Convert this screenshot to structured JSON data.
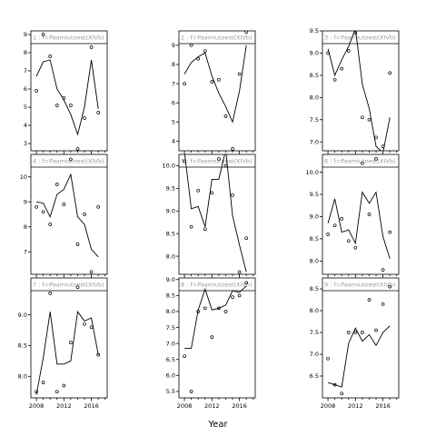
{
  "chart_data": {
    "type": "scatter",
    "layout_note": "3x3 lattice of panels, each with points and a fitted line",
    "xlabel": "Year",
    "x_ticks": [
      2008,
      2012,
      2016
    ],
    "xlim": [
      2007.2,
      2018.3
    ],
    "panels": [
      {
        "id": 1,
        "strip": "1 : f=Paamiutoest(XIVb)",
        "ylim": [
          2.6,
          9.2
        ],
        "y_ticks": [
          3,
          4,
          5,
          6,
          7,
          8,
          9
        ],
        "points": [
          [
            2008,
            5.9
          ],
          [
            2009,
            9.0
          ],
          [
            2010,
            7.8
          ],
          [
            2011,
            5.1
          ],
          [
            2012,
            5.5
          ],
          [
            2013,
            5.1
          ],
          [
            2014,
            2.7
          ],
          [
            2015,
            4.4
          ],
          [
            2016,
            8.3
          ],
          [
            2017,
            4.7
          ]
        ],
        "line": [
          [
            2008,
            6.7
          ],
          [
            2009,
            7.5
          ],
          [
            2010,
            7.6
          ],
          [
            2011,
            6.0
          ],
          [
            2012,
            5.4
          ],
          [
            2013,
            4.6
          ],
          [
            2014,
            3.5
          ],
          [
            2015,
            5.0
          ],
          [
            2016,
            7.6
          ],
          [
            2017,
            4.9
          ]
        ]
      },
      {
        "id": 4,
        "strip": "4 : f=Paamiutoest(XIVb)",
        "ylim": [
          6.1,
          10.9
        ],
        "y_ticks": [
          7,
          8,
          9,
          10
        ],
        "points": [
          [
            2008,
            8.8
          ],
          [
            2009,
            8.6
          ],
          [
            2010,
            8.1
          ],
          [
            2011,
            9.7
          ],
          [
            2012,
            8.9
          ],
          [
            2013,
            10.7
          ],
          [
            2014,
            7.3
          ],
          [
            2015,
            8.5
          ],
          [
            2016,
            6.2
          ],
          [
            2017,
            8.8
          ]
        ],
        "line": [
          [
            2008,
            9.0
          ],
          [
            2009,
            8.95
          ],
          [
            2010,
            8.4
          ],
          [
            2011,
            9.3
          ],
          [
            2012,
            9.5
          ],
          [
            2013,
            10.1
          ],
          [
            2014,
            8.4
          ],
          [
            2015,
            8.1
          ],
          [
            2016,
            7.1
          ],
          [
            2017,
            6.8
          ]
        ]
      },
      {
        "id": 7,
        "strip": "7 : f=Paamiutoest(XIVb)",
        "ylim": [
          7.65,
          9.6
        ],
        "y_ticks": [
          8.0,
          8.5,
          9.0
        ],
        "points": [
          [
            2008,
            7.75
          ],
          [
            2009,
            7.9
          ],
          [
            2010,
            9.35
          ],
          [
            2011,
            7.75
          ],
          [
            2012,
            7.85
          ],
          [
            2013,
            8.55
          ],
          [
            2014,
            9.45
          ],
          [
            2015,
            8.85
          ],
          [
            2016,
            8.8
          ],
          [
            2017,
            8.35
          ]
        ],
        "line": [
          [
            2008,
            7.7
          ],
          [
            2009,
            8.3
          ],
          [
            2010,
            9.05
          ],
          [
            2011,
            8.2
          ],
          [
            2012,
            8.2
          ],
          [
            2013,
            8.25
          ],
          [
            2014,
            9.05
          ],
          [
            2015,
            8.9
          ],
          [
            2016,
            8.95
          ],
          [
            2017,
            8.35
          ]
        ]
      },
      {
        "id": 2,
        "strip": "2 : f=Paamiutoest(XIVb)",
        "ylim": [
          3.5,
          9.75
        ],
        "y_ticks": [
          4,
          5,
          6,
          7,
          8,
          9
        ],
        "points": [
          [
            2008,
            7.0
          ],
          [
            2009,
            9.0
          ],
          [
            2010,
            8.3
          ],
          [
            2011,
            8.7
          ],
          [
            2012,
            7.1
          ],
          [
            2013,
            7.2
          ],
          [
            2014,
            5.3
          ],
          [
            2015,
            3.6
          ],
          [
            2016,
            7.5
          ],
          [
            2017,
            9.7
          ]
        ],
        "line": [
          [
            2008,
            7.5
          ],
          [
            2009,
            8.1
          ],
          [
            2010,
            8.4
          ],
          [
            2011,
            8.6
          ],
          [
            2012,
            7.4
          ],
          [
            2013,
            6.5
          ],
          [
            2014,
            5.8
          ],
          [
            2015,
            5.0
          ],
          [
            2016,
            6.6
          ],
          [
            2017,
            9.0
          ]
        ]
      },
      {
        "id": 5,
        "strip": "5 : f=Paamiutoest(XIVb)",
        "ylim": [
          7.6,
          10.25
        ],
        "y_ticks": [
          8.0,
          8.5,
          9.0,
          9.5,
          10.0
        ],
        "points": [
          [
            2008,
            10.1
          ],
          [
            2009,
            8.65
          ],
          [
            2010,
            9.45
          ],
          [
            2011,
            8.6
          ],
          [
            2012,
            9.4
          ],
          [
            2013,
            10.15
          ],
          [
            2014,
            10.0
          ],
          [
            2015,
            9.35
          ],
          [
            2016,
            7.65
          ],
          [
            2017,
            8.4
          ]
        ],
        "line": [
          [
            2008,
            10.3
          ],
          [
            2009,
            9.05
          ],
          [
            2010,
            9.1
          ],
          [
            2011,
            8.65
          ],
          [
            2012,
            9.7
          ],
          [
            2013,
            9.7
          ],
          [
            2014,
            10.35
          ],
          [
            2015,
            8.9
          ],
          [
            2016,
            8.25
          ],
          [
            2017,
            7.65
          ]
        ]
      },
      {
        "id": 8,
        "strip": "8 : f=Paamiutoest(XIVb)",
        "ylim": [
          5.3,
          9.05
        ],
        "y_ticks": [
          5.5,
          6.0,
          6.5,
          7.0,
          7.5,
          8.0,
          8.5,
          9.0
        ],
        "points": [
          [
            2008,
            6.6
          ],
          [
            2009,
            5.5
          ],
          [
            2010,
            8.0
          ],
          [
            2011,
            8.1
          ],
          [
            2012,
            7.2
          ],
          [
            2013,
            8.1
          ],
          [
            2014,
            8.0
          ],
          [
            2015,
            8.45
          ],
          [
            2016,
            8.5
          ],
          [
            2017,
            8.9
          ]
        ],
        "line": [
          [
            2008,
            6.85
          ],
          [
            2009,
            6.85
          ],
          [
            2010,
            8.05
          ],
          [
            2011,
            8.7
          ],
          [
            2012,
            8.05
          ],
          [
            2013,
            8.1
          ],
          [
            2014,
            8.2
          ],
          [
            2015,
            8.65
          ],
          [
            2016,
            8.6
          ],
          [
            2017,
            8.8
          ]
        ]
      },
      {
        "id": 3,
        "strip": "3 : f=Paamiutoest(XIVb)",
        "ylim": [
          6.8,
          9.5
        ],
        "y_ticks": [
          7.0,
          7.5,
          8.0,
          8.5,
          9.0,
          9.5
        ],
        "points": [
          [
            2008,
            9.0
          ],
          [
            2009,
            8.4
          ],
          [
            2010,
            8.65
          ],
          [
            2011,
            9.05
          ],
          [
            2012,
            9.45
          ],
          [
            2013,
            7.55
          ],
          [
            2014,
            7.5
          ],
          [
            2015,
            7.1
          ],
          [
            2016,
            6.9
          ],
          [
            2017,
            8.55
          ]
        ],
        "line": [
          [
            2008,
            9.1
          ],
          [
            2009,
            8.5
          ],
          [
            2010,
            8.85
          ],
          [
            2011,
            9.15
          ],
          [
            2012,
            9.55
          ],
          [
            2013,
            8.3
          ],
          [
            2014,
            7.75
          ],
          [
            2015,
            6.9
          ],
          [
            2016,
            6.75
          ],
          [
            2017,
            7.55
          ]
        ]
      },
      {
        "id": 6,
        "strip": "6 : f=Paamiutoest(XIVb)",
        "ylim": [
          7.7,
          10.4
        ],
        "y_ticks": [
          8.0,
          8.5,
          9.0,
          9.5,
          10.0
        ],
        "points": [
          [
            2008,
            8.6
          ],
          [
            2009,
            8.8
          ],
          [
            2010,
            8.95
          ],
          [
            2011,
            8.45
          ],
          [
            2012,
            8.3
          ],
          [
            2013,
            10.2
          ],
          [
            2014,
            9.05
          ],
          [
            2015,
            10.3
          ],
          [
            2016,
            7.8
          ],
          [
            2017,
            8.65
          ]
        ],
        "line": [
          [
            2008,
            8.85
          ],
          [
            2009,
            9.4
          ],
          [
            2010,
            8.65
          ],
          [
            2011,
            8.7
          ],
          [
            2012,
            8.4
          ],
          [
            2013,
            9.55
          ],
          [
            2014,
            9.3
          ],
          [
            2015,
            9.55
          ],
          [
            2016,
            8.55
          ],
          [
            2017,
            8.05
          ]
        ]
      },
      {
        "id": 9,
        "strip": "9 : f=Paamiutoest(XIVb)",
        "ylim": [
          6.0,
          8.75
        ],
        "y_ticks": [
          6.5,
          7.0,
          7.5,
          8.0,
          8.5
        ],
        "points": [
          [
            2008,
            6.9
          ],
          [
            2009,
            6.3
          ],
          [
            2010,
            6.1
          ],
          [
            2011,
            7.5
          ],
          [
            2012,
            7.5
          ],
          [
            2013,
            7.5
          ],
          [
            2014,
            8.25
          ],
          [
            2015,
            7.55
          ],
          [
            2016,
            8.15
          ],
          [
            2017,
            8.55
          ]
        ],
        "line": [
          [
            2008,
            6.35
          ],
          [
            2009,
            6.3
          ],
          [
            2010,
            6.25
          ],
          [
            2011,
            7.25
          ],
          [
            2012,
            7.6
          ],
          [
            2013,
            7.3
          ],
          [
            2014,
            7.45
          ],
          [
            2015,
            7.2
          ],
          [
            2016,
            7.5
          ],
          [
            2017,
            7.65
          ]
        ]
      }
    ]
  }
}
